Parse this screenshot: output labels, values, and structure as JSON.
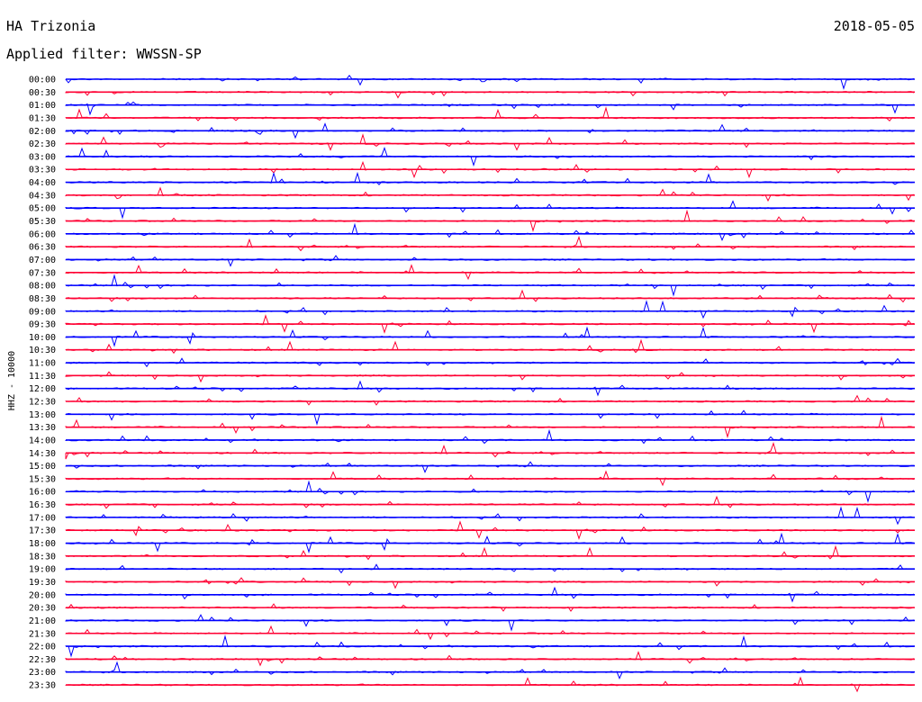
{
  "header": {
    "station": "HA Trizonia",
    "date": "2018-05-05",
    "filter_label": "Applied filter: WWSSN-SP"
  },
  "chart_data": {
    "type": "line",
    "ylabel": "HHZ - 10000",
    "colors": {
      "even_row": "#0000ff",
      "odd_row": "#ff0033"
    },
    "rows": [
      {
        "label": "00:00",
        "color": "#0000ff"
      },
      {
        "label": "00:30",
        "color": "#ff0033"
      },
      {
        "label": "01:00",
        "color": "#0000ff"
      },
      {
        "label": "01:30",
        "color": "#ff0033"
      },
      {
        "label": "02:00",
        "color": "#0000ff"
      },
      {
        "label": "02:30",
        "color": "#ff0033"
      },
      {
        "label": "03:00",
        "color": "#0000ff"
      },
      {
        "label": "03:30",
        "color": "#ff0033"
      },
      {
        "label": "04:00",
        "color": "#0000ff"
      },
      {
        "label": "04:30",
        "color": "#ff0033"
      },
      {
        "label": "05:00",
        "color": "#0000ff"
      },
      {
        "label": "05:30",
        "color": "#ff0033"
      },
      {
        "label": "06:00",
        "color": "#0000ff"
      },
      {
        "label": "06:30",
        "color": "#ff0033"
      },
      {
        "label": "07:00",
        "color": "#0000ff"
      },
      {
        "label": "07:30",
        "color": "#ff0033"
      },
      {
        "label": "08:00",
        "color": "#0000ff"
      },
      {
        "label": "08:30",
        "color": "#ff0033"
      },
      {
        "label": "09:00",
        "color": "#0000ff"
      },
      {
        "label": "09:30",
        "color": "#ff0033"
      },
      {
        "label": "10:00",
        "color": "#0000ff"
      },
      {
        "label": "10:30",
        "color": "#ff0033"
      },
      {
        "label": "11:00",
        "color": "#0000ff"
      },
      {
        "label": "11:30",
        "color": "#ff0033"
      },
      {
        "label": "12:00",
        "color": "#0000ff"
      },
      {
        "label": "12:30",
        "color": "#ff0033"
      },
      {
        "label": "13:00",
        "color": "#0000ff"
      },
      {
        "label": "13:30",
        "color": "#ff0033"
      },
      {
        "label": "14:00",
        "color": "#0000ff"
      },
      {
        "label": "14:30",
        "color": "#ff0033"
      },
      {
        "label": "15:00",
        "color": "#0000ff"
      },
      {
        "label": "15:30",
        "color": "#ff0033"
      },
      {
        "label": "16:00",
        "color": "#0000ff"
      },
      {
        "label": "16:30",
        "color": "#ff0033"
      },
      {
        "label": "17:00",
        "color": "#0000ff"
      },
      {
        "label": "17:30",
        "color": "#ff0033"
      },
      {
        "label": "18:00",
        "color": "#0000ff"
      },
      {
        "label": "18:30",
        "color": "#ff0033"
      },
      {
        "label": "19:00",
        "color": "#0000ff"
      },
      {
        "label": "19:30",
        "color": "#ff0033"
      },
      {
        "label": "20:00",
        "color": "#0000ff"
      },
      {
        "label": "20:30",
        "color": "#ff0033"
      },
      {
        "label": "21:00",
        "color": "#0000ff"
      },
      {
        "label": "21:30",
        "color": "#ff0033"
      },
      {
        "label": "22:00",
        "color": "#0000ff"
      },
      {
        "label": "22:30",
        "color": "#ff0033"
      },
      {
        "label": "23:00",
        "color": "#0000ff"
      },
      {
        "label": "23:30",
        "color": "#ff0033"
      }
    ]
  }
}
